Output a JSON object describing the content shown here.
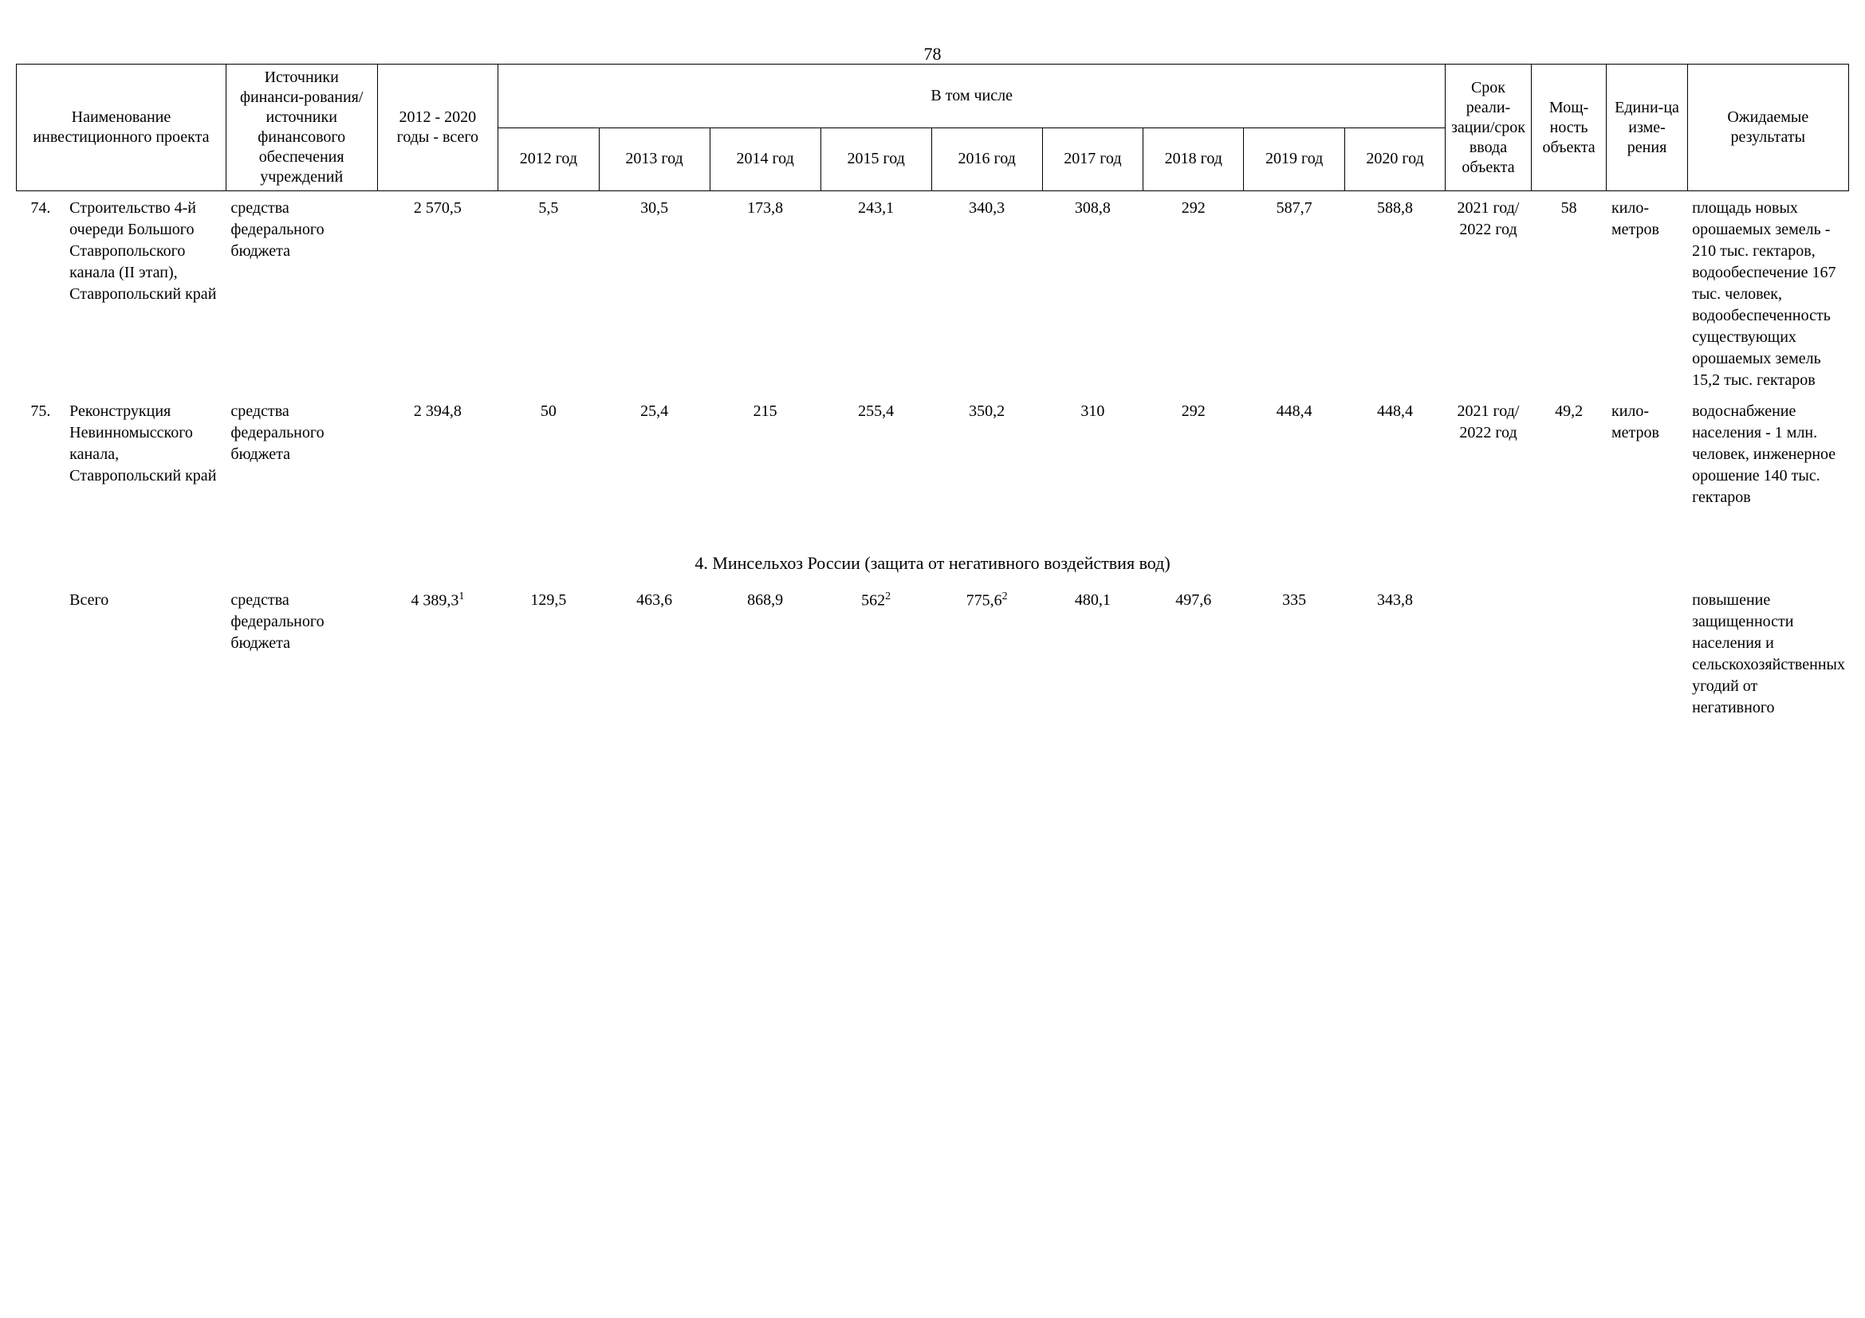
{
  "page_number": "78",
  "table": {
    "type": "table",
    "background_color": "#ffffff",
    "border_color": "#000000",
    "font_family": "Times New Roman",
    "header_fontsize": 20,
    "body_fontsize": 20,
    "header": {
      "name": "Наименование инвестиционного проекта",
      "source": "Источники финанси-рования/источники финансового обеспечения учреждений",
      "total": "2012 - 2020 годы - всего",
      "including": "В том числе",
      "years": [
        "2012 год",
        "2013 год",
        "2014 год",
        "2015 год",
        "2016 год",
        "2017 год",
        "2018 год",
        "2019 год",
        "2020 год"
      ],
      "term": "Срок реали-зации/срок ввода объекта",
      "power": "Мощ-ность объекта",
      "unit": "Едини-ца изме-рения",
      "results": "Ожидаемые результаты"
    },
    "rows": [
      {
        "num": "74.",
        "name": "Строительство 4-й очереди Большого Ставропольского канала (II этап), Ставропольский край",
        "source": "средства федерального бюджета",
        "total": "2 570,5",
        "y2012": "5,5",
        "y2013": "30,5",
        "y2014": "173,8",
        "y2015": "243,1",
        "y2016": "340,3",
        "y2017": "308,8",
        "y2018": "292",
        "y2019": "587,7",
        "y2020": "588,8",
        "term": "2021 год/ 2022 год",
        "power": "58",
        "unit": "кило-метров",
        "results": "площадь новых орошаемых земель - 210 тыс. гектаров, водообеспечение 167 тыс. человек, водообеспеченность существующих орошаемых земель 15,2 тыс. гектаров"
      },
      {
        "num": "75.",
        "name": "Реконструкция Невинномысского канала, Ставропольский край",
        "source": "средства федерального бюджета",
        "total": "2 394,8",
        "y2012": "50",
        "y2013": "25,4",
        "y2014": "215",
        "y2015": "255,4",
        "y2016": "350,2",
        "y2017": "310",
        "y2018": "292",
        "y2019": "448,4",
        "y2020": "448,4",
        "term": "2021 год/ 2022 год",
        "power": "49,2",
        "unit": "кило-метров",
        "results": "водоснабжение населения - 1 млн. человек, инженерное орошение 140 тыс. гектаров"
      }
    ],
    "section": {
      "title": "4. Минсельхоз России (защита от негативного воздействия вод)"
    },
    "totals_row": {
      "num": "",
      "name": "Всего",
      "source": "средства федерального бюджета",
      "total": "4 389,3",
      "total_sup": "1",
      "y2012": "129,5",
      "y2013": "463,6",
      "y2014": "868,9",
      "y2015": "562",
      "y2015_sup": "2",
      "y2016": "775,6",
      "y2016_sup": "2",
      "y2017": "480,1",
      "y2018": "497,6",
      "y2019": "335",
      "y2020": "343,8",
      "term": "",
      "power": "",
      "unit": "",
      "results": "повышение защищенности населения и сельскохозяйственных угодий от негативного"
    }
  }
}
